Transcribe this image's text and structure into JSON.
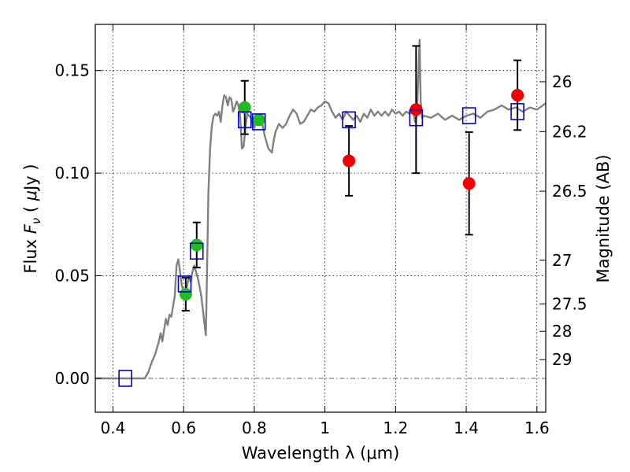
{
  "chart_data": {
    "type": "scatter",
    "title": "",
    "xlabel": "Wavelength  λ (μm)",
    "ylabel": "Flux  F_ν  ( μJy )",
    "y2label": "Magnitude (AB)",
    "xlim": [
      0.35,
      1.625
    ],
    "ylim": [
      -0.0165,
      0.1725
    ],
    "grid": true,
    "x_ticks": [
      {
        "value": 0.4,
        "label": "0.4"
      },
      {
        "value": 0.6,
        "label": "0.6"
      },
      {
        "value": 0.8,
        "label": "0.8"
      },
      {
        "value": 1.0,
        "label": "1"
      },
      {
        "value": 1.2,
        "label": "1.2"
      },
      {
        "value": 1.4,
        "label": "1.4"
      },
      {
        "value": 1.6,
        "label": "1.6"
      }
    ],
    "y_ticks": [
      {
        "value": 0.0,
        "label": "0.00"
      },
      {
        "value": 0.05,
        "label": "0.05"
      },
      {
        "value": 0.1,
        "label": "0.10"
      },
      {
        "value": 0.15,
        "label": "0.15"
      }
    ],
    "mag_ticks": [
      {
        "mag": 26,
        "label": "26"
      },
      {
        "mag": 26.2,
        "label": "26.2"
      },
      {
        "mag": 26.5,
        "label": "26.5"
      },
      {
        "mag": 27,
        "label": "27"
      },
      {
        "mag": 27.5,
        "label": "27.5"
      },
      {
        "mag": 28,
        "label": "28"
      },
      {
        "mag": 29,
        "label": "29"
      }
    ],
    "zero_line": 0.0,
    "series": [
      {
        "kind": "line",
        "color": "#808080",
        "points": [
          [
            0.35,
            0.0
          ],
          [
            0.49,
            0.0
          ],
          [
            0.5,
            0.003
          ],
          [
            0.51,
            0.008
          ],
          [
            0.52,
            0.012
          ],
          [
            0.53,
            0.018
          ],
          [
            0.535,
            0.022
          ],
          [
            0.54,
            0.018
          ],
          [
            0.545,
            0.024
          ],
          [
            0.55,
            0.029
          ],
          [
            0.555,
            0.026
          ],
          [
            0.56,
            0.031
          ],
          [
            0.565,
            0.03
          ],
          [
            0.57,
            0.035
          ],
          [
            0.575,
            0.04
          ],
          [
            0.58,
            0.055
          ],
          [
            0.585,
            0.058
          ],
          [
            0.59,
            0.052
          ],
          [
            0.595,
            0.045
          ],
          [
            0.6,
            0.043
          ],
          [
            0.605,
            0.04
          ],
          [
            0.61,
            0.045
          ],
          [
            0.615,
            0.05
          ],
          [
            0.62,
            0.047
          ],
          [
            0.625,
            0.052
          ],
          [
            0.63,
            0.055
          ],
          [
            0.635,
            0.052
          ],
          [
            0.64,
            0.049
          ],
          [
            0.645,
            0.045
          ],
          [
            0.65,
            0.04
          ],
          [
            0.655,
            0.033
          ],
          [
            0.66,
            0.025
          ],
          [
            0.663,
            0.021
          ],
          [
            0.666,
            0.05
          ],
          [
            0.67,
            0.09
          ],
          [
            0.675,
            0.112
          ],
          [
            0.68,
            0.123
          ],
          [
            0.685,
            0.128
          ],
          [
            0.69,
            0.129
          ],
          [
            0.695,
            0.128
          ],
          [
            0.7,
            0.13
          ],
          [
            0.705,
            0.125
          ],
          [
            0.71,
            0.133
          ],
          [
            0.715,
            0.138
          ],
          [
            0.72,
            0.137
          ],
          [
            0.725,
            0.133
          ],
          [
            0.73,
            0.137
          ],
          [
            0.735,
            0.136
          ],
          [
            0.74,
            0.13
          ],
          [
            0.745,
            0.132
          ],
          [
            0.75,
            0.135
          ],
          [
            0.755,
            0.133
          ],
          [
            0.76,
            0.128
          ],
          [
            0.765,
            0.112
          ],
          [
            0.77,
            0.113
          ],
          [
            0.775,
            0.122
          ],
          [
            0.78,
            0.129
          ],
          [
            0.79,
            0.127
          ],
          [
            0.8,
            0.122
          ],
          [
            0.81,
            0.128
          ],
          [
            0.82,
            0.126
          ],
          [
            0.83,
            0.118
          ],
          [
            0.84,
            0.112
          ],
          [
            0.85,
            0.11
          ],
          [
            0.855,
            0.116
          ],
          [
            0.86,
            0.12
          ],
          [
            0.87,
            0.124
          ],
          [
            0.88,
            0.122
          ],
          [
            0.89,
            0.124
          ],
          [
            0.9,
            0.128
          ],
          [
            0.91,
            0.131
          ],
          [
            0.92,
            0.129
          ],
          [
            0.93,
            0.124
          ],
          [
            0.94,
            0.125
          ],
          [
            0.95,
            0.128
          ],
          [
            0.96,
            0.131
          ],
          [
            0.97,
            0.13
          ],
          [
            0.98,
            0.132
          ],
          [
            0.99,
            0.133
          ],
          [
            1.0,
            0.135
          ],
          [
            1.01,
            0.134
          ],
          [
            1.02,
            0.13
          ],
          [
            1.03,
            0.127
          ],
          [
            1.04,
            0.129
          ],
          [
            1.05,
            0.126
          ],
          [
            1.06,
            0.13
          ],
          [
            1.07,
            0.128
          ],
          [
            1.08,
            0.126
          ],
          [
            1.09,
            0.128
          ],
          [
            1.1,
            0.125
          ],
          [
            1.11,
            0.129
          ],
          [
            1.12,
            0.127
          ],
          [
            1.13,
            0.131
          ],
          [
            1.14,
            0.128
          ],
          [
            1.15,
            0.13
          ],
          [
            1.16,
            0.128
          ],
          [
            1.17,
            0.13
          ],
          [
            1.18,
            0.128
          ],
          [
            1.19,
            0.131
          ],
          [
            1.2,
            0.129
          ],
          [
            1.21,
            0.13
          ],
          [
            1.22,
            0.128
          ],
          [
            1.23,
            0.13
          ],
          [
            1.24,
            0.129
          ],
          [
            1.25,
            0.13
          ],
          [
            1.255,
            0.125
          ],
          [
            1.26,
            0.128
          ],
          [
            1.265,
            0.15
          ],
          [
            1.268,
            0.165
          ],
          [
            1.271,
            0.135
          ],
          [
            1.275,
            0.127
          ],
          [
            1.28,
            0.128
          ],
          [
            1.3,
            0.127
          ],
          [
            1.32,
            0.129
          ],
          [
            1.34,
            0.126
          ],
          [
            1.36,
            0.128
          ],
          [
            1.38,
            0.126
          ],
          [
            1.4,
            0.128
          ],
          [
            1.42,
            0.129
          ],
          [
            1.44,
            0.127
          ],
          [
            1.46,
            0.13
          ],
          [
            1.48,
            0.131
          ],
          [
            1.5,
            0.133
          ],
          [
            1.52,
            0.131
          ],
          [
            1.54,
            0.132
          ],
          [
            1.56,
            0.13
          ],
          [
            1.58,
            0.132
          ],
          [
            1.6,
            0.131
          ],
          [
            1.625,
            0.134
          ]
        ]
      },
      {
        "kind": "model_squares",
        "color": "#0000cc",
        "points": [
          [
            0.435,
            0.0
          ],
          [
            0.603,
            0.046
          ],
          [
            0.637,
            0.062
          ],
          [
            0.773,
            0.126
          ],
          [
            0.813,
            0.125
          ],
          [
            1.068,
            0.126
          ],
          [
            1.258,
            0.127
          ],
          [
            1.408,
            0.128
          ],
          [
            1.545,
            0.13
          ]
        ]
      },
      {
        "kind": "points",
        "color": "#22bb22",
        "points": [
          {
            "x": 0.606,
            "y": 0.041,
            "err": 0.008
          },
          {
            "x": 0.637,
            "y": 0.065,
            "err": 0.011
          },
          {
            "x": 0.773,
            "y": 0.132,
            "err": 0.013
          },
          {
            "x": 0.813,
            "y": 0.126,
            "err": null
          }
        ]
      },
      {
        "kind": "points",
        "color": "#ee0000",
        "points": [
          {
            "x": 1.068,
            "y": 0.106,
            "err": 0.017
          },
          {
            "x": 1.258,
            "y": 0.131,
            "err": 0.031
          },
          {
            "x": 1.408,
            "y": 0.095,
            "err": 0.025
          },
          {
            "x": 1.545,
            "y": 0.138,
            "err": 0.017
          }
        ]
      }
    ]
  }
}
